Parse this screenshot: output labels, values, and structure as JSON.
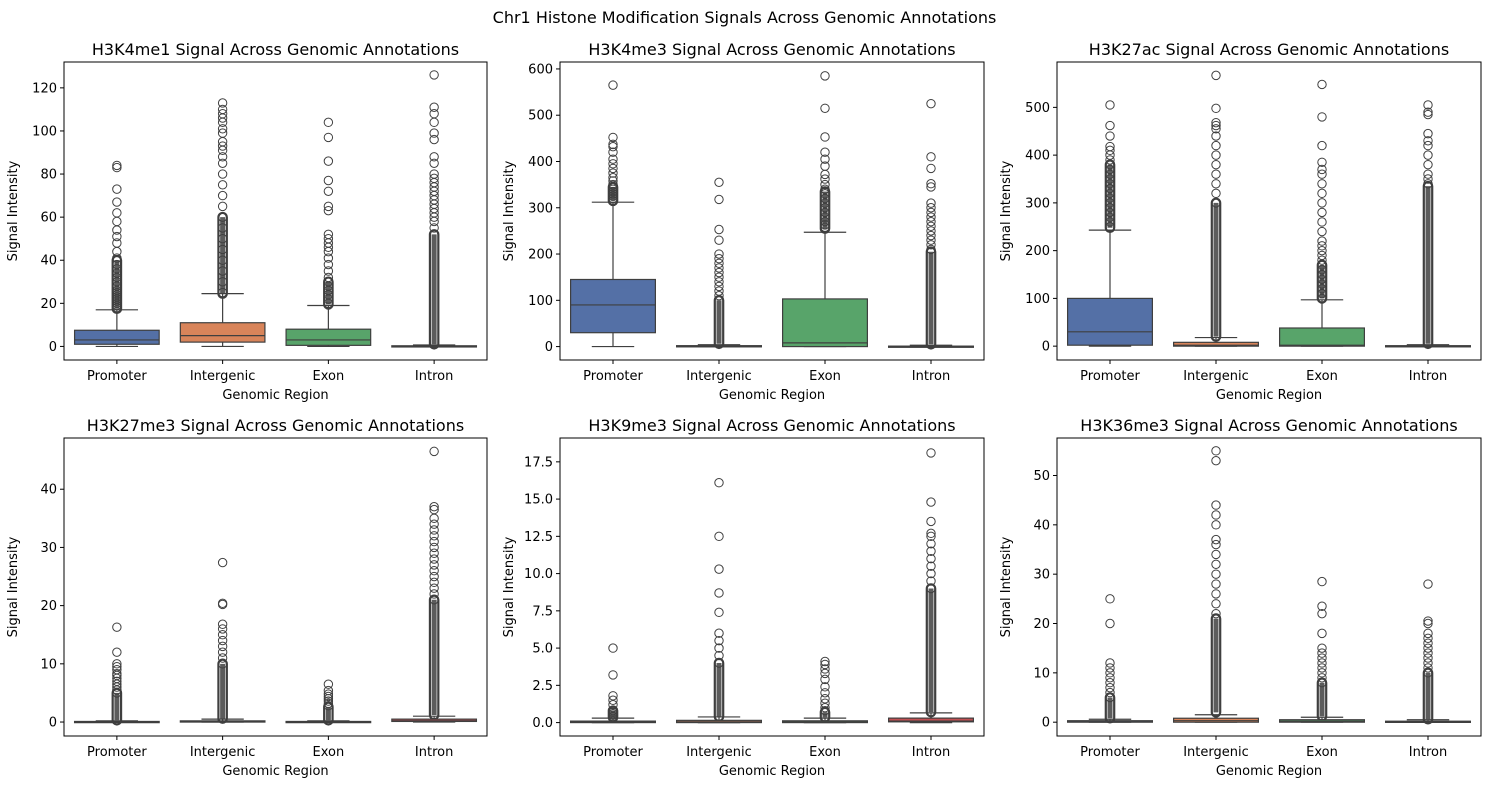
{
  "suptitle": "Chr1 Histone Modification Signals Across Genomic Annotations",
  "colors": {
    "Promoter": "#5470a6",
    "Intergenic": "#d8845a",
    "Exon": "#58a46a",
    "Intron": "#c24f52",
    "line": "#3f3f3f"
  },
  "chart_data": [
    {
      "type": "box",
      "title": "H3K4me1 Signal Across Genomic Annotations",
      "xlabel": "Genomic Region",
      "ylabel": "Signal Intensity",
      "categories": [
        "Promoter",
        "Intergenic",
        "Exon",
        "Intron"
      ],
      "ylim": [
        -6.3,
        132
      ],
      "yticks": [
        0,
        20,
        40,
        60,
        80,
        100,
        120
      ],
      "ytick_labels": [
        "0",
        "20",
        "40",
        "60",
        "80",
        "100",
        "120"
      ],
      "boxes": [
        {
          "q1": 1,
          "median": 3,
          "q3": 7.5,
          "whislo": 0,
          "whishi": 17,
          "outliers": [
            18,
            19,
            20,
            21,
            22,
            23,
            24,
            25,
            26,
            28,
            30,
            32,
            34,
            36,
            38,
            41,
            44,
            48,
            51,
            54,
            58,
            62,
            67,
            73,
            83,
            84
          ],
          "dense": [
            17.5,
            40
          ]
        },
        {
          "q1": 2,
          "median": 5,
          "q3": 11,
          "whislo": 0,
          "whishi": 24.5,
          "outliers": [
            25,
            30,
            35,
            40,
            45,
            50,
            55,
            60,
            65,
            70,
            75,
            80,
            85,
            88,
            91,
            93,
            95,
            99,
            101,
            104,
            106,
            108,
            110,
            113
          ],
          "dense": [
            24.5,
            60
          ]
        },
        {
          "q1": 0.5,
          "median": 3,
          "q3": 8,
          "whislo": 0,
          "whishi": 19,
          "outliers": [
            20,
            22,
            24,
            26,
            28,
            30,
            32,
            35,
            38,
            41,
            44,
            46,
            48,
            50,
            52,
            63,
            65,
            72,
            77,
            86,
            97,
            104
          ],
          "dense": [
            19.5,
            30
          ]
        },
        {
          "q1": 0,
          "median": 0,
          "q3": 0.3,
          "whislo": 0,
          "whishi": 0.7,
          "outliers": [
            55,
            58,
            60,
            62,
            64,
            66,
            68,
            70,
            72,
            74,
            76,
            78,
            80,
            85,
            88,
            96,
            99,
            104,
            108,
            111,
            126
          ],
          "dense": [
            1,
            52
          ]
        }
      ]
    },
    {
      "type": "box",
      "title": "H3K4me3 Signal Across Genomic Annotations",
      "xlabel": "Genomic Region",
      "ylabel": "Signal Intensity",
      "categories": [
        "Promoter",
        "Intergenic",
        "Exon",
        "Intron"
      ],
      "ylim": [
        -29,
        615
      ],
      "yticks": [
        0,
        100,
        200,
        300,
        400,
        500,
        600
      ],
      "ytick_labels": [
        "0",
        "100",
        "200",
        "300",
        "400",
        "500",
        "600"
      ],
      "boxes": [
        {
          "q1": 30,
          "median": 90,
          "q3": 145,
          "whislo": 0,
          "whishi": 312,
          "outliers": [
            315,
            320,
            325,
            330,
            335,
            340,
            345,
            350,
            358,
            365,
            375,
            385,
            395,
            405,
            420,
            432,
            437,
            452,
            565
          ],
          "dense": [
            315,
            345
          ]
        },
        {
          "q1": 0,
          "median": 0,
          "q3": 2,
          "whislo": 0,
          "whishi": 4,
          "outliers": [
            110,
            120,
            130,
            140,
            150,
            160,
            170,
            180,
            190,
            200,
            230,
            253,
            318,
            355
          ],
          "dense": [
            6,
            100
          ]
        },
        {
          "q1": 0,
          "median": 8,
          "q3": 103,
          "whislo": 0,
          "whishi": 247,
          "outliers": [
            258,
            263,
            270,
            280,
            290,
            300,
            310,
            320,
            330,
            340,
            350,
            362,
            372,
            390,
            405,
            420,
            453,
            515,
            585
          ],
          "dense": [
            255,
            335
          ]
        },
        {
          "q1": 0,
          "median": 0,
          "q3": 1,
          "whislo": 0,
          "whishi": 3,
          "outliers": [
            210,
            220,
            230,
            240,
            250,
            260,
            270,
            280,
            290,
            300,
            310,
            345,
            352,
            385,
            410,
            525
          ],
          "dense": [
            5,
            205
          ]
        }
      ]
    },
    {
      "type": "box",
      "title": "H3K27ac Signal Across Genomic Annotations",
      "xlabel": "Genomic Region",
      "ylabel": "Signal Intensity",
      "categories": [
        "Promoter",
        "Intergenic",
        "Exon",
        "Intron"
      ],
      "ylim": [
        -29,
        595
      ],
      "yticks": [
        0,
        100,
        200,
        300,
        400,
        500
      ],
      "ytick_labels": [
        "0",
        "100",
        "200",
        "300",
        "400",
        "500"
      ],
      "boxes": [
        {
          "q1": 2,
          "median": 30,
          "q3": 100,
          "whislo": 0,
          "whishi": 243,
          "outliers": [
            250,
            260,
            270,
            280,
            290,
            300,
            310,
            320,
            330,
            340,
            350,
            360,
            370,
            380,
            390,
            400,
            410,
            418,
            440,
            462,
            505
          ],
          "dense": [
            248,
            380
          ]
        },
        {
          "q1": 0,
          "median": 2,
          "q3": 8,
          "whislo": 0,
          "whishi": 18,
          "outliers": [
            300,
            320,
            340,
            360,
            380,
            400,
            420,
            440,
            455,
            462,
            468,
            498,
            567
          ],
          "dense": [
            20,
            300
          ]
        },
        {
          "q1": 0,
          "median": 2,
          "q3": 38,
          "whislo": 0,
          "whishi": 97,
          "outliers": [
            100,
            110,
            120,
            130,
            140,
            150,
            160,
            170,
            180,
            190,
            200,
            210,
            220,
            240,
            260,
            280,
            300,
            320,
            340,
            360,
            370,
            385,
            420,
            480,
            548
          ],
          "dense": [
            100,
            170
          ]
        },
        {
          "q1": 0,
          "median": 0,
          "q3": 1,
          "whislo": 0,
          "whishi": 3,
          "outliers": [
            340,
            350,
            360,
            380,
            400,
            420,
            430,
            445,
            485,
            490,
            505
          ],
          "dense": [
            5,
            335
          ]
        }
      ]
    },
    {
      "type": "box",
      "title": "H3K27me3 Signal Across Genomic Annotations",
      "xlabel": "Genomic Region",
      "ylabel": "Signal Intensity",
      "categories": [
        "Promoter",
        "Intergenic",
        "Exon",
        "Intron"
      ],
      "ylim": [
        -2.4,
        48.8
      ],
      "yticks": [
        0,
        10,
        20,
        30,
        40
      ],
      "ytick_labels": [
        "0",
        "10",
        "20",
        "30",
        "40"
      ],
      "boxes": [
        {
          "q1": 0,
          "median": 0,
          "q3": 0.1,
          "whislo": 0,
          "whishi": 0.2,
          "outliers": [
            5,
            5.5,
            6,
            6.5,
            7,
            7.5,
            8,
            8.3,
            9,
            9.5,
            10,
            12,
            16.3
          ],
          "dense": [
            0.3,
            5
          ]
        },
        {
          "q1": 0,
          "median": 0.1,
          "q3": 0.2,
          "whislo": 0,
          "whishi": 0.5,
          "outliers": [
            10,
            11,
            12,
            13,
            14,
            15,
            16,
            16.8,
            20.2,
            20.4,
            27.4
          ],
          "dense": [
            0.6,
            10
          ]
        },
        {
          "q1": 0,
          "median": 0,
          "q3": 0.1,
          "whislo": 0,
          "whishi": 0.2,
          "outliers": [
            2.8,
            3.2,
            3.6,
            4,
            4.4,
            4.8,
            5.4,
            6.5
          ],
          "dense": [
            0.3,
            2.6
          ]
        },
        {
          "q1": 0.1,
          "median": 0.2,
          "q3": 0.5,
          "whislo": 0,
          "whishi": 1,
          "outliers": [
            21,
            22,
            23,
            24,
            25,
            26,
            27,
            28,
            29,
            30,
            31,
            32,
            33,
            34,
            35,
            36.5,
            37,
            46.5
          ],
          "dense": [
            1.2,
            21
          ]
        }
      ]
    },
    {
      "type": "box",
      "title": "H3K9me3 Signal Across Genomic Annotations",
      "xlabel": "Genomic Region",
      "ylabel": "Signal Intensity",
      "categories": [
        "Promoter",
        "Intergenic",
        "Exon",
        "Intron"
      ],
      "ylim": [
        -0.9,
        19.1
      ],
      "yticks": [
        0,
        2.5,
        5,
        7.5,
        10,
        12.5,
        15,
        17.5
      ],
      "ytick_labels": [
        "0.0",
        "2.5",
        "5.0",
        "7.5",
        "10.0",
        "12.5",
        "15.0",
        "17.5"
      ],
      "boxes": [
        {
          "q1": 0,
          "median": 0.03,
          "q3": 0.1,
          "whislo": 0,
          "whishi": 0.3,
          "outliers": [
            0.4,
            0.5,
            0.6,
            0.7,
            0.8,
            1.2,
            1.5,
            1.8,
            3.2,
            5.0
          ],
          "dense": [
            0.35,
            0.8
          ]
        },
        {
          "q1": 0,
          "median": 0.05,
          "q3": 0.15,
          "whislo": 0,
          "whishi": 0.38,
          "outliers": [
            4,
            4.5,
            5,
            5.5,
            6,
            7.4,
            8.7,
            10.3,
            12.5,
            16.1
          ],
          "dense": [
            0.4,
            4
          ]
        },
        {
          "q1": 0,
          "median": 0.05,
          "q3": 0.12,
          "whislo": 0,
          "whishi": 0.3,
          "outliers": [
            0.8,
            1.0,
            1.3,
            1.6,
            2.0,
            2.4,
            2.9,
            3.3,
            3.6,
            3.9,
            4.1
          ],
          "dense": [
            0.35,
            0.7
          ]
        },
        {
          "q1": 0.05,
          "median": 0.1,
          "q3": 0.3,
          "whislo": 0,
          "whishi": 0.65,
          "outliers": [
            9,
            9.5,
            10,
            10.5,
            11,
            11.5,
            12,
            12.5,
            12.7,
            13.5,
            14.8,
            18.1
          ],
          "dense": [
            0.7,
            9
          ]
        }
      ]
    },
    {
      "type": "box",
      "title": "H3K36me3 Signal Across Genomic Annotations",
      "xlabel": "Genomic Region",
      "ylabel": "Signal Intensity",
      "categories": [
        "Promoter",
        "Intergenic",
        "Exon",
        "Intron"
      ],
      "ylim": [
        -2.8,
        57.6
      ],
      "yticks": [
        0,
        10,
        20,
        30,
        40,
        50
      ],
      "ytick_labels": [
        "0",
        "10",
        "20",
        "30",
        "40",
        "50"
      ],
      "boxes": [
        {
          "q1": 0,
          "median": 0.1,
          "q3": 0.3,
          "whislo": 0,
          "whishi": 0.6,
          "outliers": [
            5,
            6,
            7,
            8,
            9,
            10,
            11,
            12,
            20,
            25
          ],
          "dense": [
            0.8,
            5
          ]
        },
        {
          "q1": 0,
          "median": 0.3,
          "q3": 0.8,
          "whislo": 0,
          "whishi": 1.5,
          "outliers": [
            22,
            24,
            26,
            28,
            30,
            32,
            34,
            36,
            37,
            40,
            42,
            44,
            53,
            55
          ],
          "dense": [
            2,
            21
          ]
        },
        {
          "q1": 0,
          "median": 0.2,
          "q3": 0.5,
          "whislo": 0,
          "whishi": 1,
          "outliers": [
            8,
            9,
            10,
            11,
            12,
            13,
            14,
            15,
            18,
            22,
            23.5,
            28.5
          ],
          "dense": [
            1.2,
            8
          ]
        },
        {
          "q1": 0,
          "median": 0.05,
          "q3": 0.2,
          "whislo": 0,
          "whishi": 0.5,
          "outliers": [
            10,
            11,
            12,
            13,
            14,
            15,
            16,
            17,
            18,
            20,
            20.5,
            28
          ],
          "dense": [
            0.6,
            10
          ]
        }
      ]
    }
  ]
}
